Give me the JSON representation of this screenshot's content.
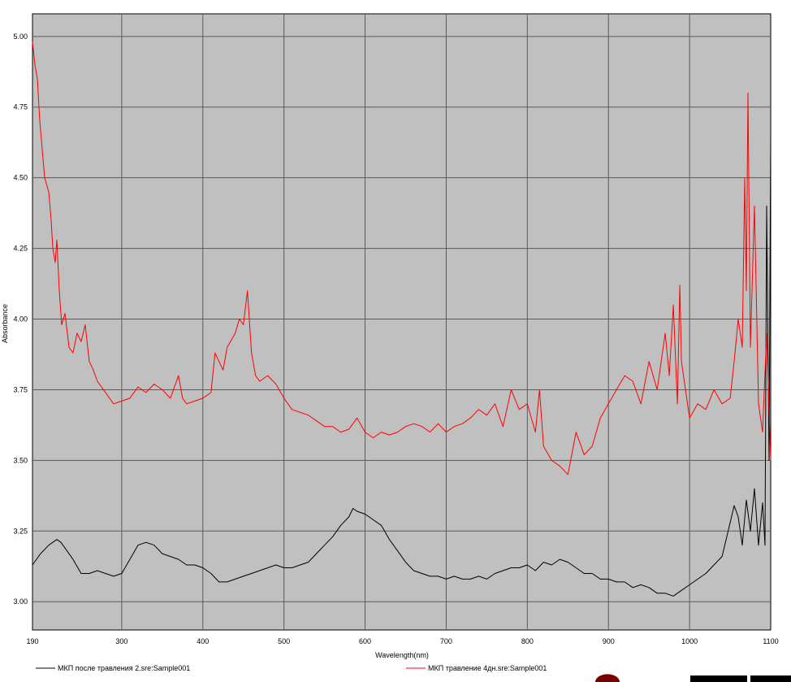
{
  "chart_data": {
    "type": "line",
    "xlabel": "Wavelength(nm)",
    "ylabel": "Absorbance",
    "xlim": [
      190,
      1100
    ],
    "ylim": [
      2.9,
      5.08
    ],
    "x_ticks": [
      190,
      300,
      400,
      500,
      600,
      700,
      800,
      900,
      1000,
      1100
    ],
    "y_ticks": [
      3.0,
      3.25,
      3.5,
      3.75,
      4.0,
      4.25,
      4.5,
      4.75,
      5.0
    ],
    "y_tick_labels": [
      "3.00",
      "3.25",
      "3.50",
      "3.75",
      "4.00",
      "4.25",
      "4.50",
      "4.75",
      "5.00"
    ],
    "grid": true,
    "plot_background": "#c0c0c0",
    "legend_position": "bottom",
    "series": [
      {
        "name": "МКП после травления 2.sre:Sample001",
        "color": "#000000",
        "x": [
          190,
          200,
          210,
          220,
          225,
          230,
          240,
          250,
          260,
          270,
          280,
          290,
          300,
          310,
          320,
          330,
          340,
          350,
          360,
          370,
          380,
          390,
          400,
          410,
          420,
          430,
          440,
          450,
          460,
          470,
          480,
          490,
          500,
          510,
          520,
          530,
          540,
          550,
          560,
          570,
          580,
          585,
          590,
          600,
          610,
          620,
          630,
          640,
          650,
          660,
          670,
          680,
          690,
          700,
          710,
          720,
          730,
          740,
          750,
          760,
          770,
          780,
          790,
          800,
          810,
          820,
          830,
          840,
          850,
          860,
          870,
          880,
          890,
          900,
          910,
          920,
          930,
          940,
          950,
          960,
          970,
          980,
          990,
          1000,
          1010,
          1020,
          1030,
          1040,
          1045,
          1050,
          1055,
          1060,
          1065,
          1070,
          1075,
          1080,
          1085,
          1090,
          1093,
          1095,
          1098,
          1100
        ],
        "y": [
          3.13,
          3.17,
          3.2,
          3.22,
          3.21,
          3.19,
          3.15,
          3.1,
          3.1,
          3.11,
          3.1,
          3.09,
          3.1,
          3.15,
          3.2,
          3.21,
          3.2,
          3.17,
          3.16,
          3.15,
          3.13,
          3.13,
          3.12,
          3.1,
          3.07,
          3.07,
          3.08,
          3.09,
          3.1,
          3.11,
          3.12,
          3.13,
          3.12,
          3.12,
          3.13,
          3.14,
          3.17,
          3.2,
          3.23,
          3.27,
          3.3,
          3.33,
          3.32,
          3.31,
          3.29,
          3.27,
          3.22,
          3.18,
          3.14,
          3.11,
          3.1,
          3.09,
          3.09,
          3.08,
          3.09,
          3.08,
          3.08,
          3.09,
          3.08,
          3.1,
          3.11,
          3.12,
          3.12,
          3.13,
          3.11,
          3.14,
          3.13,
          3.15,
          3.14,
          3.12,
          3.1,
          3.1,
          3.08,
          3.08,
          3.07,
          3.07,
          3.05,
          3.06,
          3.05,
          3.03,
          3.03,
          3.02,
          3.04,
          3.06,
          3.08,
          3.1,
          3.13,
          3.16,
          3.22,
          3.28,
          3.34,
          3.3,
          3.2,
          3.36,
          3.25,
          3.4,
          3.2,
          3.35,
          3.2,
          4.4,
          3.5,
          4.65
        ]
      },
      {
        "name": "МКП травление 4дн.sre:Sample001",
        "color": "#ff0000",
        "x": [
          190,
          193,
          196,
          199,
          202,
          205,
          210,
          213,
          215,
          218,
          220,
          223,
          226,
          230,
          235,
          240,
          245,
          250,
          255,
          260,
          265,
          270,
          280,
          290,
          300,
          310,
          320,
          330,
          340,
          350,
          360,
          370,
          375,
          380,
          390,
          400,
          410,
          415,
          420,
          425,
          430,
          440,
          445,
          450,
          455,
          460,
          465,
          470,
          480,
          490,
          500,
          510,
          520,
          530,
          540,
          550,
          560,
          570,
          580,
          590,
          600,
          610,
          620,
          630,
          640,
          650,
          660,
          670,
          680,
          690,
          700,
          710,
          720,
          730,
          740,
          750,
          760,
          770,
          780,
          790,
          800,
          810,
          815,
          820,
          830,
          840,
          850,
          860,
          870,
          880,
          890,
          900,
          910,
          920,
          930,
          940,
          950,
          960,
          970,
          975,
          980,
          985,
          988,
          990,
          995,
          1000,
          1010,
          1020,
          1030,
          1040,
          1050,
          1055,
          1060,
          1065,
          1068,
          1070,
          1072,
          1075,
          1080,
          1085,
          1090,
          1095,
          1100
        ],
        "y": [
          4.98,
          4.9,
          4.85,
          4.7,
          4.6,
          4.5,
          4.45,
          4.35,
          4.25,
          4.2,
          4.28,
          4.1,
          3.98,
          4.02,
          3.9,
          3.88,
          3.95,
          3.92,
          3.98,
          3.85,
          3.82,
          3.78,
          3.74,
          3.7,
          3.71,
          3.72,
          3.76,
          3.74,
          3.77,
          3.75,
          3.72,
          3.8,
          3.72,
          3.7,
          3.71,
          3.72,
          3.74,
          3.88,
          3.85,
          3.82,
          3.9,
          3.95,
          4.0,
          3.98,
          4.1,
          3.88,
          3.8,
          3.78,
          3.8,
          3.77,
          3.72,
          3.68,
          3.67,
          3.66,
          3.64,
          3.62,
          3.62,
          3.6,
          3.61,
          3.65,
          3.6,
          3.58,
          3.6,
          3.59,
          3.6,
          3.62,
          3.63,
          3.62,
          3.6,
          3.63,
          3.6,
          3.62,
          3.63,
          3.65,
          3.68,
          3.66,
          3.7,
          3.62,
          3.75,
          3.68,
          3.7,
          3.6,
          3.75,
          3.55,
          3.5,
          3.48,
          3.45,
          3.6,
          3.52,
          3.55,
          3.65,
          3.7,
          3.75,
          3.8,
          3.78,
          3.7,
          3.85,
          3.75,
          3.95,
          3.8,
          4.05,
          3.7,
          4.12,
          3.85,
          3.75,
          3.65,
          3.7,
          3.68,
          3.75,
          3.7,
          3.72,
          3.85,
          4.0,
          3.9,
          4.5,
          4.1,
          4.8,
          3.9,
          4.4,
          3.7,
          3.6,
          3.95,
          3.5
        ]
      }
    ]
  }
}
